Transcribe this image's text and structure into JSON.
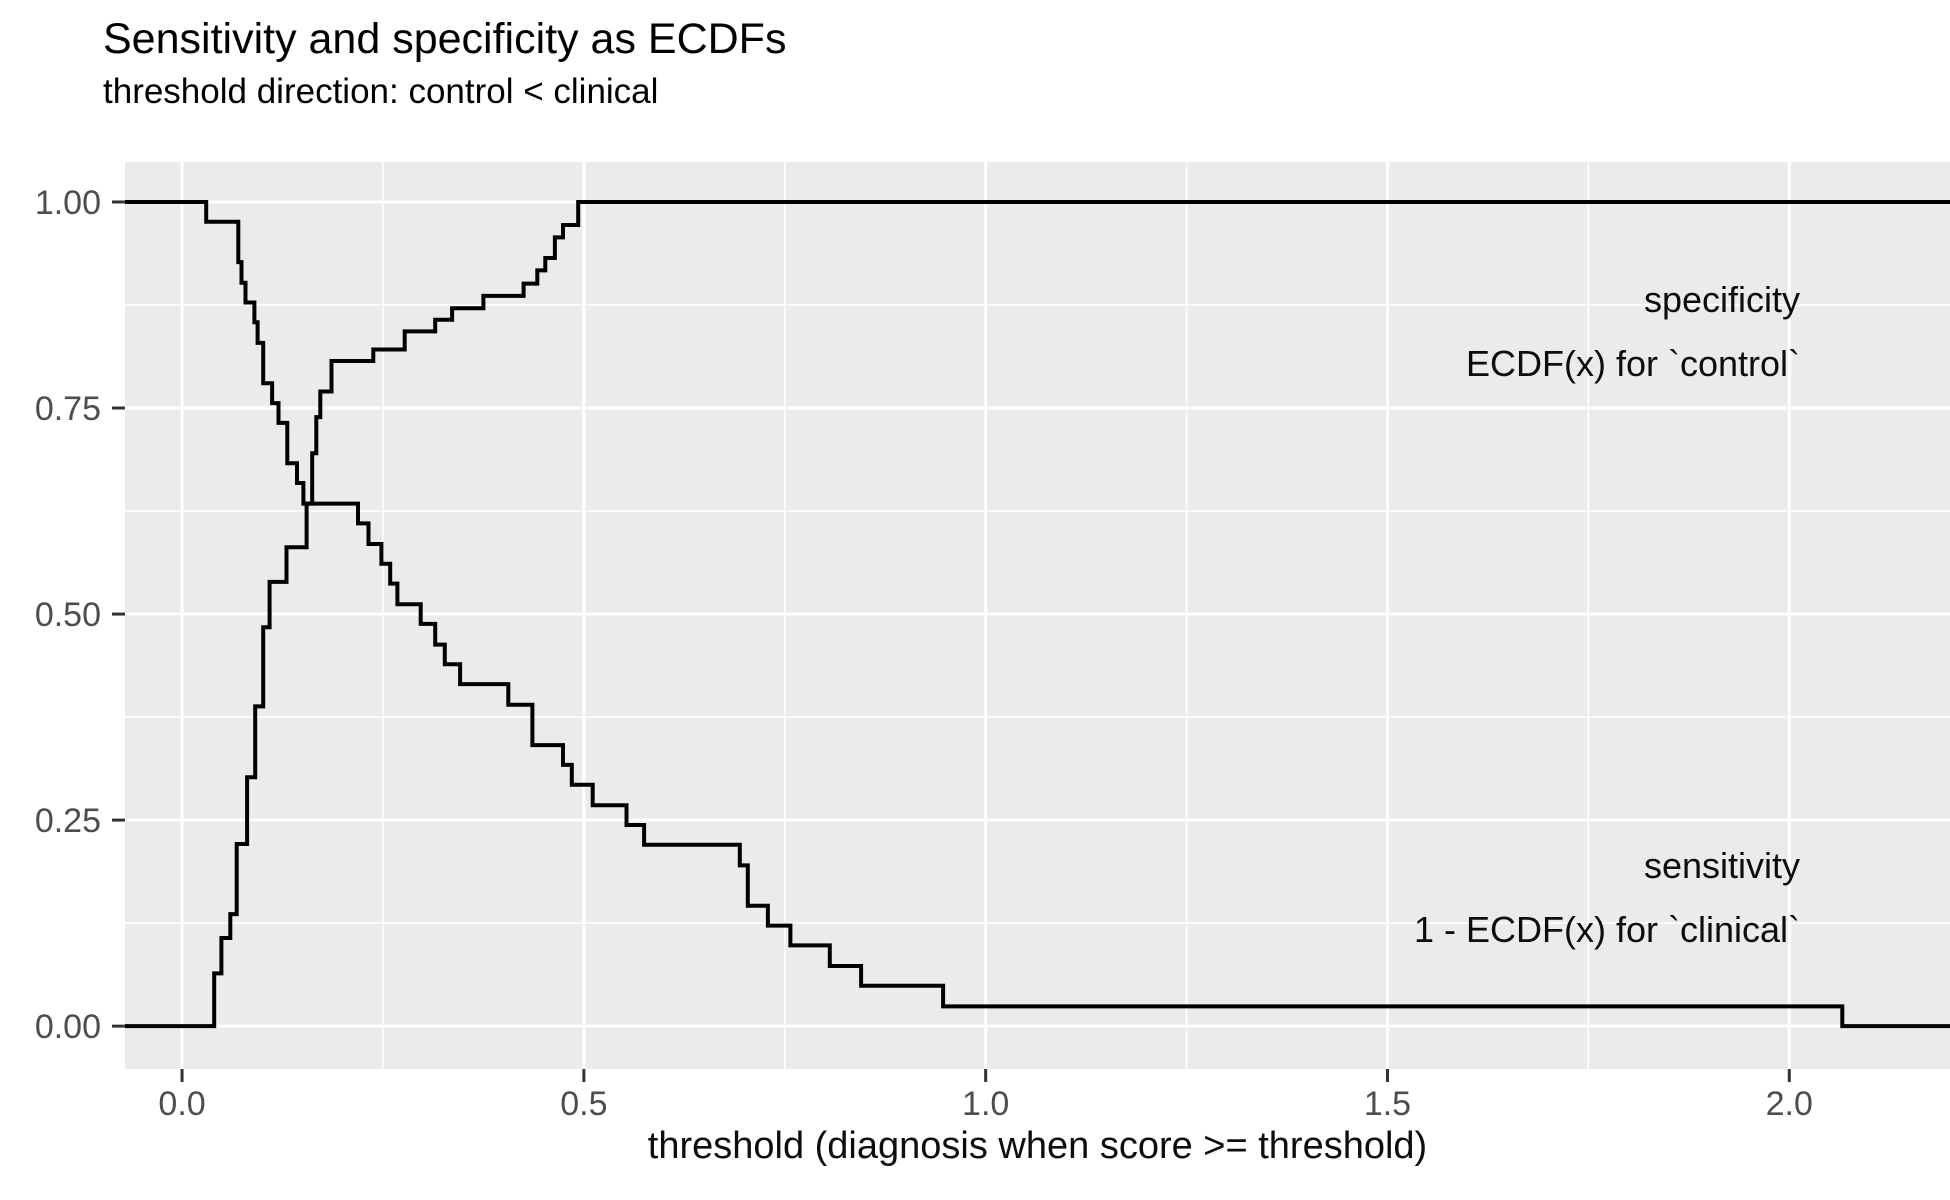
{
  "header": {
    "title": "Sensitivity and specificity as ECDFs",
    "subtitle": "threshold direction: control < clinical"
  },
  "annotations": {
    "specificity": {
      "line1": "specificity",
      "line2": "ECDF(x) for `control`"
    },
    "sensitivity": {
      "line1": "sensitivity",
      "line2": "1 - ECDF(x) for `clinical`"
    }
  },
  "chart_data": {
    "type": "line",
    "subtype": "step-ecdf",
    "title": "Sensitivity and specificity as ECDFs",
    "subtitle": "threshold direction: control < clinical",
    "xlabel": "threshold (diagnosis when score >= threshold)",
    "ylabel": "",
    "xlim": [
      -0.071,
      2.2
    ],
    "ylim": [
      -0.052,
      1.0485
    ],
    "x_ticks": [
      0.0,
      0.5,
      1.0,
      1.5,
      2.0
    ],
    "x_tick_labels": [
      "0.0",
      "0.5",
      "1.0",
      "1.5",
      "2.0"
    ],
    "x_minor_ticks": [
      0.25,
      0.75,
      1.25,
      1.75
    ],
    "y_ticks": [
      0.0,
      0.25,
      0.5,
      0.75,
      1.0
    ],
    "y_tick_labels": [
      "0.00",
      "0.25",
      "0.50",
      "0.75",
      "1.00"
    ],
    "y_minor_ticks": [
      0.125,
      0.375,
      0.625,
      0.875
    ],
    "grid": true,
    "legend_position": "none",
    "panel_background": "#EBEBEB",
    "grid_color": "#FFFFFF",
    "line_color": "#000000",
    "tick_label_color": "#4D4D4D",
    "tick_mark_color": "#333333",
    "series": [
      {
        "name": "specificity (ECDF(x) for `control`)",
        "steps": [
          [
            -0.071,
            0.0
          ],
          [
            0.04,
            0.064
          ],
          [
            0.049,
            0.107
          ],
          [
            0.06,
            0.136
          ],
          [
            0.068,
            0.221
          ],
          [
            0.081,
            0.302
          ],
          [
            0.091,
            0.388
          ],
          [
            0.101,
            0.484
          ],
          [
            0.109,
            0.539
          ],
          [
            0.13,
            0.581
          ],
          [
            0.155,
            0.634
          ],
          [
            0.162,
            0.695
          ],
          [
            0.167,
            0.739
          ],
          [
            0.172,
            0.77
          ],
          [
            0.186,
            0.807
          ],
          [
            0.238,
            0.821
          ],
          [
            0.277,
            0.843
          ],
          [
            0.315,
            0.857
          ],
          [
            0.336,
            0.871
          ],
          [
            0.375,
            0.886
          ],
          [
            0.425,
            0.901
          ],
          [
            0.442,
            0.917
          ],
          [
            0.452,
            0.932
          ],
          [
            0.464,
            0.957
          ],
          [
            0.474,
            0.972
          ],
          [
            0.493,
            1.0
          ]
        ]
      },
      {
        "name": "sensitivity (1 - ECDF(x) for `clinical`)",
        "steps": [
          [
            -0.071,
            1.0
          ],
          [
            0.03,
            0.976
          ],
          [
            0.07,
            0.927
          ],
          [
            0.074,
            0.902
          ],
          [
            0.079,
            0.878
          ],
          [
            0.09,
            0.854
          ],
          [
            0.094,
            0.829
          ],
          [
            0.101,
            0.78
          ],
          [
            0.112,
            0.756
          ],
          [
            0.12,
            0.732
          ],
          [
            0.131,
            0.683
          ],
          [
            0.143,
            0.659
          ],
          [
            0.151,
            0.634
          ],
          [
            0.219,
            0.61
          ],
          [
            0.232,
            0.585
          ],
          [
            0.248,
            0.561
          ],
          [
            0.259,
            0.537
          ],
          [
            0.268,
            0.512
          ],
          [
            0.297,
            0.488
          ],
          [
            0.315,
            0.463
          ],
          [
            0.327,
            0.439
          ],
          [
            0.346,
            0.415
          ],
          [
            0.406,
            0.39
          ],
          [
            0.436,
            0.341
          ],
          [
            0.474,
            0.317
          ],
          [
            0.485,
            0.293
          ],
          [
            0.511,
            0.268
          ],
          [
            0.553,
            0.244
          ],
          [
            0.575,
            0.22
          ],
          [
            0.694,
            0.195
          ],
          [
            0.704,
            0.146
          ],
          [
            0.729,
            0.122
          ],
          [
            0.757,
            0.098
          ],
          [
            0.806,
            0.073
          ],
          [
            0.845,
            0.049
          ],
          [
            0.947,
            0.024
          ],
          [
            2.066,
            0.0
          ]
        ]
      }
    ]
  }
}
